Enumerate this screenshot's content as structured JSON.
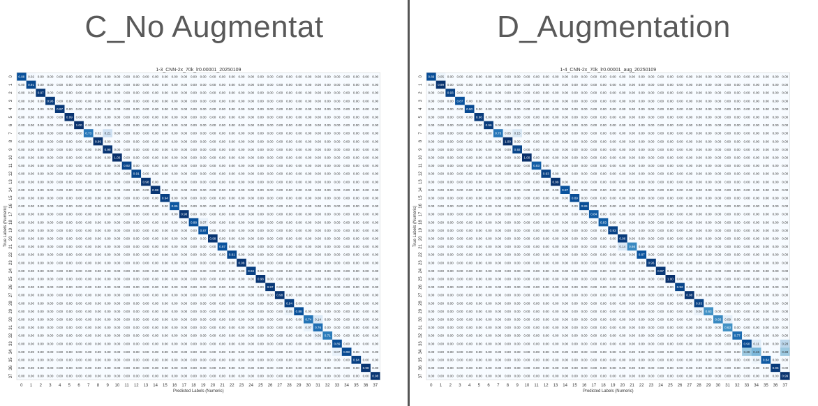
{
  "panels": [
    {
      "heading": "C_No Augmentat",
      "chart_data": {
        "type": "heatmap",
        "title": "1-3_CNN-2x_70k_lr0.00001_20250109",
        "xlabel": "Predicted Labels (Numeric)",
        "ylabel": "True Labels (Numeric)",
        "labels": [
          "0",
          "1",
          "2",
          "3",
          "4",
          "5",
          "6",
          "7",
          "8",
          "9",
          "10",
          "11",
          "12",
          "13",
          "14",
          "15",
          "16",
          "17",
          "18",
          "19",
          "20",
          "21",
          "22",
          "23",
          "24",
          "25",
          "26",
          "27",
          "28",
          "29",
          "30",
          "31",
          "32",
          "33",
          "34",
          "35",
          "36",
          "37"
        ],
        "diagonal": [
          0.88,
          0.91,
          0.97,
          0.96,
          0.97,
          0.99,
          1.0,
          0.73,
          0.99,
          0.98,
          1.0,
          0.92,
          0.91,
          0.98,
          0.98,
          0.94,
          0.85,
          0.98,
          0.88,
          0.87,
          0.98,
          0.87,
          0.91,
          0.98,
          0.94,
          0.98,
          0.97,
          0.98,
          0.94,
          0.88,
          0.74,
          0.76,
          0.71,
          0.89,
          0.9,
          0.94,
          0.98,
          0.98
        ],
        "off_diagonal": [
          {
            "row": 0,
            "col": 1,
            "value": 0.02
          },
          {
            "row": 7,
            "col": 8,
            "value": 0.02
          },
          {
            "row": 7,
            "col": 9,
            "value": 0.21
          },
          {
            "row": 18,
            "col": 19,
            "value": 0.07
          },
          {
            "row": 29,
            "col": 28,
            "value": 0.05
          },
          {
            "row": 30,
            "col": 31,
            "value": 0.14
          },
          {
            "row": 31,
            "col": 30,
            "value": 0.07
          },
          {
            "row": 32,
            "col": 31,
            "value": 0.06
          },
          {
            "row": 34,
            "col": 33,
            "value": 0.07
          }
        ],
        "default_cell": "0.00",
        "colormap": "Blues"
      }
    },
    {
      "heading": "D_Augmentation",
      "chart_data": {
        "type": "heatmap",
        "title": "1-4_CNN-2x_70k_lr0.00001_aug_20250109",
        "xlabel": "Predicted Labels (Numeric)",
        "ylabel": "True Labels (Numeric)",
        "labels": [
          "0",
          "1",
          "2",
          "3",
          "4",
          "5",
          "6",
          "7",
          "8",
          "9",
          "10",
          "11",
          "12",
          "13",
          "14",
          "15",
          "16",
          "17",
          "18",
          "19",
          "20",
          "21",
          "22",
          "23",
          "24",
          "25",
          "26",
          "27",
          "28",
          "29",
          "30",
          "31",
          "32",
          "33",
          "34",
          "35",
          "36",
          "37"
        ],
        "diagonal": [
          0.89,
          0.99,
          0.93,
          0.87,
          0.9,
          0.96,
          0.96,
          0.73,
          1.0,
          0.92,
          1.0,
          0.83,
          0.93,
          0.99,
          0.87,
          0.89,
          0.89,
          0.84,
          0.83,
          0.93,
          0.96,
          0.66,
          0.87,
          0.96,
          0.97,
          1.0,
          0.92,
          0.98,
          0.93,
          0.63,
          0.66,
          0.63,
          0.77,
          0.9,
          0.46,
          0.84,
          0.96,
          0.99
        ],
        "off_diagonal": [
          {
            "row": 0,
            "col": 1,
            "value": 0.05
          },
          {
            "row": 7,
            "col": 8,
            "value": 0.05
          },
          {
            "row": 7,
            "col": 9,
            "value": 0.15
          },
          {
            "row": 21,
            "col": 20,
            "value": 0.14
          },
          {
            "row": 29,
            "col": 28,
            "value": 0.06
          },
          {
            "row": 30,
            "col": 31,
            "value": 0.09
          },
          {
            "row": 33,
            "col": 34,
            "value": 0.11
          },
          {
            "row": 33,
            "col": 37,
            "value": 0.28
          },
          {
            "row": 34,
            "col": 33,
            "value": 0.38
          },
          {
            "row": 34,
            "col": 37,
            "value": 0.38
          },
          {
            "row": 35,
            "col": 34,
            "value": 0.04
          }
        ],
        "default_cell": "0.00",
        "colormap": "Blues"
      }
    }
  ]
}
